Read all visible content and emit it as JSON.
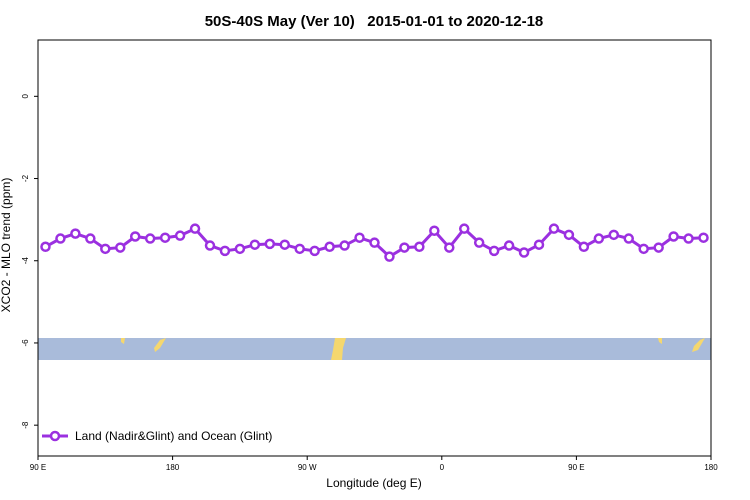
{
  "chart_data": {
    "type": "line",
    "title": "50S-40S May (Ver 10)   2015-01-01 to 2020-12-18",
    "x_label": "Longitude (deg E)",
    "y_label": "XCO2 - MLO trend (ppm)",
    "x": [
      95,
      105,
      115,
      125,
      135,
      145,
      155,
      165,
      175,
      185,
      195,
      205,
      215,
      225,
      235,
      245,
      255,
      265,
      275,
      285,
      295,
      305,
      315,
      325,
      335,
      345,
      355,
      365,
      375,
      385,
      395,
      405,
      415,
      425,
      435,
      445,
      455,
      465,
      475,
      485,
      495,
      505,
      515,
      525,
      535
    ],
    "series": [
      {
        "name": "Land (Nadir&Glint) and Ocean (Glint)",
        "color": "#9b30e0",
        "values": [
          -3.66,
          -3.46,
          -3.34,
          -3.46,
          -3.71,
          -3.68,
          -3.41,
          -3.46,
          -3.44,
          -3.39,
          -3.22,
          -3.63,
          -3.76,
          -3.71,
          -3.61,
          -3.59,
          -3.61,
          -3.71,
          -3.76,
          -3.66,
          -3.63,
          -3.44,
          -3.56,
          -3.9,
          -3.68,
          -3.66,
          -3.27,
          -3.68,
          -3.22,
          -3.56,
          -3.76,
          -3.63,
          -3.8,
          -3.61,
          -3.22,
          -3.37,
          -3.66,
          -3.46,
          -3.37,
          -3.46,
          -3.71,
          -3.68,
          -3.41,
          -3.46,
          -3.44
        ]
      }
    ],
    "xlim": [
      90,
      540
    ],
    "xticks": [
      {
        "value": 90,
        "label": "90 E"
      },
      180,
      {
        "value": 270,
        "label": "90 W"
      },
      {
        "value": 360,
        "label": "0"
      },
      {
        "value": 450,
        "label": "90 E"
      },
      {
        "value": 540,
        "label": "180"
      }
    ],
    "ylim": [
      -8.75,
      1.37
    ],
    "yticks": [
      0,
      -2,
      -4,
      -6,
      -8
    ],
    "legend": "bottom-left"
  }
}
